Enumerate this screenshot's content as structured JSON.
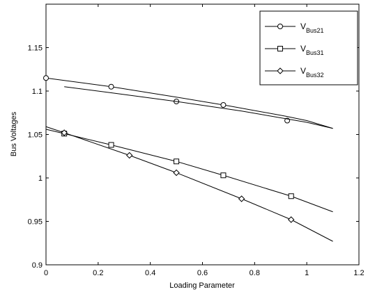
{
  "chart_data": {
    "type": "line",
    "title": "",
    "xlabel": "Loading Parameter",
    "ylabel": "Bus Voltages",
    "xlim": [
      0,
      1.2
    ],
    "ylim": [
      0.9,
      1.2
    ],
    "x_ticks": [
      "0",
      "0.2",
      "0.4",
      "0.6",
      "0.8",
      "1",
      "1.2"
    ],
    "y_ticks": [
      "0.9",
      "0.95",
      "1",
      "1.05",
      "1.1",
      "1.15"
    ],
    "grid": false,
    "legend_position": "top-right",
    "series": [
      {
        "name": "V",
        "name_sub": "Bus21",
        "marker": "circle",
        "line": [
          [
            0,
            1.115
          ],
          [
            0.25,
            1.105
          ],
          [
            0.5,
            1.093
          ],
          [
            0.7,
            1.083
          ],
          [
            0.92,
            1.071
          ],
          [
            1.0,
            1.066
          ],
          [
            1.1,
            1.057
          ]
        ],
        "markers": [
          [
            0,
            1.115
          ],
          [
            0.25,
            1.105
          ],
          [
            0.5,
            1.088
          ],
          [
            0.68,
            1.084
          ],
          [
            0.925,
            1.066
          ]
        ]
      },
      {
        "name": "",
        "name_sub": "",
        "marker": "none",
        "line": [
          [
            0.07,
            1.105
          ],
          [
            0.25,
            1.098
          ],
          [
            0.5,
            1.088
          ],
          [
            0.75,
            1.077
          ],
          [
            1.0,
            1.064
          ],
          [
            1.1,
            1.057
          ]
        ],
        "markers": []
      },
      {
        "name": "V",
        "name_sub": "Bus31",
        "marker": "square",
        "line": [
          [
            0,
            1.056
          ],
          [
            0.07,
            1.051
          ],
          [
            0.25,
            1.038
          ],
          [
            0.5,
            1.019
          ],
          [
            0.68,
            1.003
          ],
          [
            0.94,
            0.979
          ],
          [
            1.1,
            0.961
          ]
        ],
        "markers": [
          [
            0.07,
            1.051
          ],
          [
            0.25,
            1.038
          ],
          [
            0.5,
            1.019
          ],
          [
            0.68,
            1.003
          ],
          [
            0.94,
            0.979
          ]
        ]
      },
      {
        "name": "V",
        "name_sub": "Bus32",
        "marker": "diamond",
        "line": [
          [
            0,
            1.059
          ],
          [
            0.07,
            1.052
          ],
          [
            0.32,
            1.026
          ],
          [
            0.5,
            1.006
          ],
          [
            0.75,
            0.976
          ],
          [
            0.94,
            0.952
          ],
          [
            1.1,
            0.927
          ]
        ],
        "markers": [
          [
            0.07,
            1.052
          ],
          [
            0.32,
            1.026
          ],
          [
            0.5,
            1.006
          ],
          [
            0.75,
            0.976
          ],
          [
            0.94,
            0.952
          ]
        ]
      }
    ]
  }
}
